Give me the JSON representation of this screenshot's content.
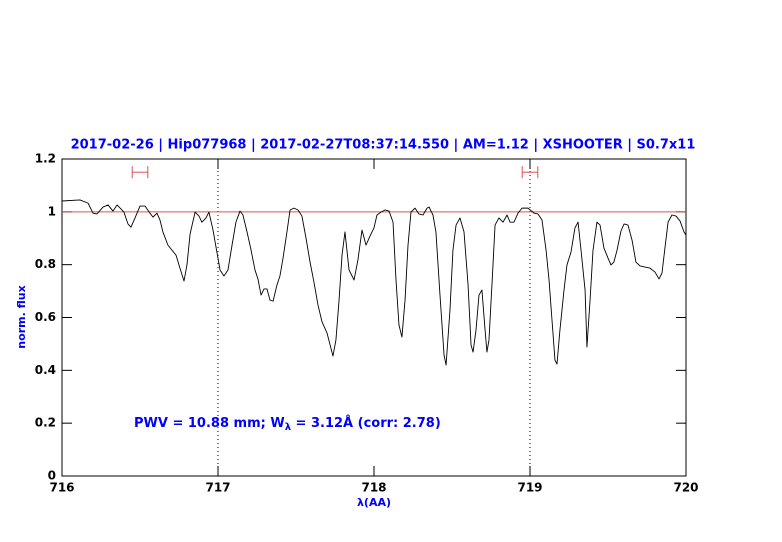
{
  "chart_data": {
    "type": "line",
    "title": "2017-02-26 | Hip077968 | 2017-02-27T08:37:14.550 | AM=1.12 | XSHOOTER | S0.7x11",
    "x_label": "λ(AA)",
    "y_label": "norm. flux",
    "annotation": {
      "prefix": "PWV = 10.88 mm; W",
      "subscript": "λ",
      "suffix": " = 3.12Å  (corr: 2.78)"
    },
    "xlim": [
      716,
      720
    ],
    "ylim": [
      0,
      1.2
    ],
    "xticks": [
      716,
      717,
      718,
      719,
      720
    ],
    "yticks": [
      0,
      0.2,
      0.4,
      0.6,
      0.8,
      1,
      1.2
    ],
    "reference_line": 1,
    "reference_color": "#e05050",
    "marker_lines": [
      717,
      719
    ],
    "windows": [
      [
        716.45,
        716.55
      ],
      [
        718.95,
        719.05
      ]
    ],
    "window_y": 1.15,
    "window_color": "#e05050",
    "text_color": "#0000ff",
    "series": [
      {
        "color": "#000000",
        "x": [
          716.0,
          716.115,
          716.167,
          716.199,
          716.224,
          716.263,
          716.295,
          716.327,
          716.353,
          716.397,
          716.423,
          716.442,
          716.468,
          716.5,
          716.532,
          716.564,
          716.583,
          716.609,
          716.628,
          716.647,
          716.679,
          716.731,
          716.756,
          716.782,
          716.801,
          716.821,
          716.853,
          716.878,
          716.897,
          716.923,
          716.942,
          716.968,
          716.994,
          717.013,
          717.038,
          717.064,
          717.09,
          717.115,
          717.141,
          717.16,
          717.186,
          717.212,
          717.237,
          717.256,
          717.276,
          717.295,
          717.314,
          717.333,
          717.353,
          717.378,
          717.397,
          717.417,
          717.442,
          717.462,
          717.487,
          717.513,
          717.538,
          717.564,
          717.59,
          717.615,
          717.641,
          717.667,
          717.699,
          717.737,
          717.756,
          717.776,
          717.795,
          717.814,
          717.84,
          717.872,
          717.897,
          717.923,
          717.949,
          717.974,
          718.0,
          718.019,
          718.045,
          718.071,
          718.096,
          718.122,
          718.141,
          718.16,
          718.179,
          718.199,
          718.218,
          718.237,
          718.263,
          718.288,
          718.314,
          718.34,
          718.353,
          718.378,
          718.397,
          718.423,
          718.449,
          718.462,
          718.487,
          718.506,
          718.526,
          718.551,
          718.577,
          718.603,
          718.622,
          718.635,
          718.654,
          718.673,
          718.692,
          718.712,
          718.724,
          718.737,
          718.756,
          718.776,
          718.801,
          718.827,
          718.853,
          718.872,
          718.897,
          718.923,
          718.949,
          718.987,
          719.026,
          719.051,
          719.077,
          719.103,
          719.122,
          719.141,
          719.16,
          719.173,
          719.192,
          719.218,
          719.237,
          719.263,
          719.288,
          719.308,
          719.327,
          719.353,
          719.365,
          719.385,
          719.404,
          719.429,
          719.449,
          719.474,
          719.5,
          719.519,
          719.538,
          719.558,
          719.583,
          719.603,
          719.628,
          719.654,
          719.679,
          719.705,
          719.737,
          719.769,
          719.801,
          719.827,
          719.846,
          719.865,
          719.885,
          719.91,
          719.936,
          719.962,
          719.987,
          720.0
        ],
        "values": [
          1.041,
          1.045,
          1.033,
          0.995,
          0.992,
          1.018,
          1.026,
          1.003,
          1.026,
          0.999,
          0.954,
          0.942,
          0.977,
          1.022,
          1.022,
          0.995,
          0.98,
          0.995,
          0.969,
          0.924,
          0.874,
          0.836,
          0.787,
          0.738,
          0.799,
          0.916,
          0.999,
          0.984,
          0.961,
          0.977,
          0.999,
          0.931,
          0.844,
          0.78,
          0.757,
          0.78,
          0.874,
          0.961,
          1.003,
          0.988,
          0.924,
          0.855,
          0.78,
          0.746,
          0.685,
          0.708,
          0.708,
          0.666,
          0.662,
          0.723,
          0.757,
          0.825,
          0.924,
          1.007,
          1.014,
          1.007,
          0.984,
          0.901,
          0.81,
          0.734,
          0.647,
          0.583,
          0.541,
          0.454,
          0.515,
          0.666,
          0.836,
          0.924,
          0.78,
          0.742,
          0.818,
          0.931,
          0.874,
          0.908,
          0.939,
          0.988,
          0.999,
          1.007,
          1.003,
          0.961,
          0.742,
          0.572,
          0.526,
          0.666,
          0.874,
          0.999,
          1.014,
          0.992,
          0.988,
          1.014,
          1.018,
          0.988,
          0.924,
          0.685,
          0.458,
          0.42,
          0.628,
          0.855,
          0.95,
          0.977,
          0.924,
          0.723,
          0.496,
          0.469,
          0.553,
          0.685,
          0.704,
          0.553,
          0.469,
          0.515,
          0.723,
          0.95,
          0.977,
          0.961,
          0.988,
          0.961,
          0.961,
          0.995,
          1.014,
          1.014,
          0.995,
          0.992,
          0.969,
          0.855,
          0.742,
          0.59,
          0.439,
          0.424,
          0.553,
          0.704,
          0.799,
          0.848,
          0.939,
          0.961,
          0.855,
          0.704,
          0.488,
          0.666,
          0.855,
          0.961,
          0.95,
          0.863,
          0.825,
          0.799,
          0.81,
          0.855,
          0.927,
          0.954,
          0.95,
          0.893,
          0.81,
          0.795,
          0.791,
          0.787,
          0.772,
          0.746,
          0.768,
          0.863,
          0.961,
          0.988,
          0.984,
          0.965,
          0.924,
          0.912
        ]
      }
    ]
  }
}
